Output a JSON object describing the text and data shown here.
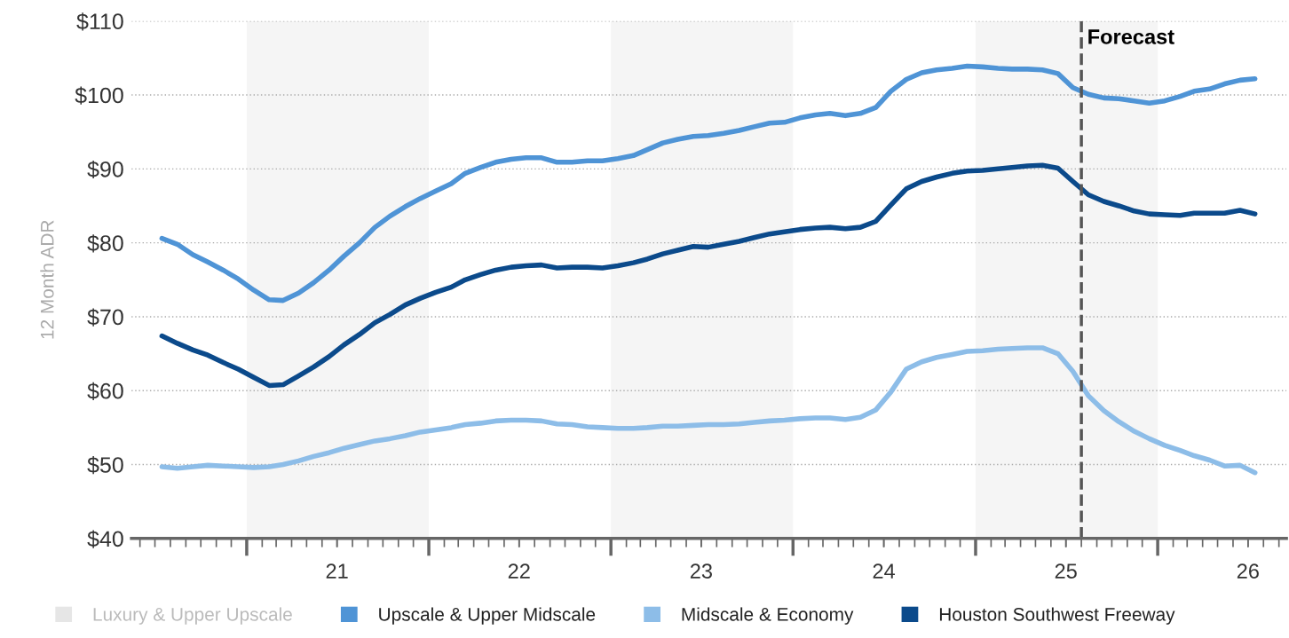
{
  "chart_data": {
    "type": "line",
    "ylabel": "12 Month ADR",
    "x": [
      "2020-07-15",
      "2020-08-15",
      "2020-09-15",
      "2020-10-15",
      "2020-11-15",
      "2020-12-15",
      "2021-01-15",
      "2021-02-15",
      "2021-03-15",
      "2021-04-15",
      "2021-05-15",
      "2021-06-15",
      "2021-07-15",
      "2021-08-15",
      "2021-09-15",
      "2021-10-15",
      "2021-11-15",
      "2021-12-15",
      "2022-01-15",
      "2022-02-15",
      "2022-03-15",
      "2022-04-15",
      "2022-05-15",
      "2022-06-15",
      "2022-07-15",
      "2022-08-15",
      "2022-09-15",
      "2022-10-15",
      "2022-11-15",
      "2022-12-15",
      "2023-01-15",
      "2023-02-15",
      "2023-03-15",
      "2023-04-15",
      "2023-05-15",
      "2023-06-15",
      "2023-07-15",
      "2023-08-15",
      "2023-09-15",
      "2023-10-15",
      "2023-11-15",
      "2023-12-15",
      "2024-01-15",
      "2024-02-15",
      "2024-03-15",
      "2024-04-15",
      "2024-05-15",
      "2024-06-15",
      "2024-07-15",
      "2024-08-15",
      "2024-09-15",
      "2024-10-15",
      "2024-11-15",
      "2024-12-15",
      "2025-01-15",
      "2025-02-15",
      "2025-03-15",
      "2025-04-15",
      "2025-05-15",
      "2025-06-15",
      "2025-07-15",
      "2025-08-15",
      "2025-09-15",
      "2025-10-15",
      "2025-11-15",
      "2025-12-15",
      "2026-01-15",
      "2026-02-15",
      "2026-03-15",
      "2026-04-15",
      "2026-05-15",
      "2026-06-15",
      "2026-07-15"
    ],
    "series": [
      {
        "name": "Luxury & Upper Upscale",
        "color": "#e6e6e6",
        "values": [
          null,
          null,
          null,
          null,
          null,
          null,
          null,
          null,
          null,
          null,
          null,
          null,
          null,
          null,
          null,
          null,
          null,
          null,
          null,
          null,
          null,
          null,
          null,
          null,
          null,
          null,
          null,
          null,
          null,
          null,
          null,
          null,
          null,
          null,
          null,
          null,
          null,
          null,
          null,
          null,
          null,
          null,
          null,
          null,
          null,
          null,
          null,
          null,
          null,
          null,
          null,
          null,
          null,
          null,
          null,
          null,
          null,
          null,
          null,
          null,
          null,
          null,
          null,
          null,
          null,
          null,
          null,
          null,
          null,
          null,
          null,
          null,
          null
        ]
      },
      {
        "name": "Upscale & Upper Midscale",
        "color": "#4f94d6",
        "values": [
          80.6,
          79.8,
          78.4,
          77.4,
          76.3,
          75.1,
          73.6,
          72.3,
          72.2,
          73.2,
          74.6,
          76.3,
          78.2,
          80.0,
          82.1,
          83.6,
          84.9,
          86.0,
          87.0,
          88.0,
          89.4,
          90.2,
          90.9,
          91.3,
          91.5,
          91.5,
          90.9,
          90.9,
          91.1,
          91.1,
          91.4,
          91.8,
          92.6,
          93.5,
          94.0,
          94.4,
          94.5,
          94.8,
          95.2,
          95.7,
          96.2,
          96.3,
          96.9,
          97.3,
          97.5,
          97.2,
          97.5,
          98.3,
          100.5,
          102.1,
          103.0,
          103.4,
          103.6,
          103.9,
          103.8,
          103.6,
          103.5,
          103.5,
          103.4,
          102.9,
          101.0,
          100.1,
          99.6,
          99.5,
          99.2,
          98.9,
          99.2,
          99.8,
          100.5,
          100.8,
          101.5,
          102.0,
          102.2
        ]
      },
      {
        "name": "Midscale & Economy",
        "color": "#8dbde8",
        "values": [
          49.7,
          49.5,
          49.7,
          49.9,
          49.8,
          49.7,
          49.6,
          49.7,
          50.0,
          50.5,
          51.1,
          51.6,
          52.2,
          52.7,
          53.2,
          53.5,
          53.9,
          54.4,
          54.7,
          55.0,
          55.4,
          55.6,
          55.9,
          56.0,
          56.0,
          55.9,
          55.5,
          55.4,
          55.1,
          55.0,
          54.9,
          54.9,
          55.0,
          55.2,
          55.2,
          55.3,
          55.4,
          55.4,
          55.5,
          55.7,
          55.9,
          56.0,
          56.2,
          56.3,
          56.3,
          56.1,
          56.4,
          57.4,
          59.8,
          62.9,
          63.9,
          64.5,
          64.9,
          65.3,
          65.4,
          65.6,
          65.7,
          65.8,
          65.8,
          65.0,
          62.6,
          59.3,
          57.3,
          55.8,
          54.5,
          53.5,
          52.6,
          51.9,
          51.2,
          50.6,
          49.8,
          49.9,
          48.9
        ]
      },
      {
        "name": "Houston Southwest Freeway",
        "color": "#0b4a8b",
        "values": [
          67.4,
          66.4,
          65.5,
          64.8,
          63.8,
          62.9,
          61.8,
          60.7,
          60.8,
          62.0,
          63.2,
          64.6,
          66.2,
          67.6,
          69.2,
          70.3,
          71.6,
          72.5,
          73.3,
          74.0,
          75.0,
          75.7,
          76.3,
          76.7,
          76.9,
          77.0,
          76.6,
          76.7,
          76.7,
          76.6,
          76.9,
          77.3,
          77.8,
          78.5,
          79.0,
          79.5,
          79.4,
          79.8,
          80.2,
          80.7,
          81.2,
          81.5,
          81.8,
          82.0,
          82.1,
          81.9,
          82.1,
          82.9,
          85.1,
          87.3,
          88.3,
          88.9,
          89.4,
          89.7,
          89.8,
          90.0,
          90.2,
          90.4,
          90.5,
          90.1,
          88.3,
          86.5,
          85.6,
          85.0,
          84.3,
          83.9,
          83.8,
          83.7,
          84.0,
          84.0,
          84.0,
          84.4,
          83.9
        ]
      }
    ],
    "xlim": [
      "2020-05-15",
      "2026-09-16"
    ],
    "xticks": [
      {
        "value": "2021-01-01",
        "label": null
      },
      {
        "value": "2021-07-01",
        "label": "21"
      },
      {
        "value": "2022-01-01",
        "label": null
      },
      {
        "value": "2022-07-01",
        "label": "22"
      },
      {
        "value": "2023-01-01",
        "label": null
      },
      {
        "value": "2023-07-01",
        "label": "23"
      },
      {
        "value": "2024-01-01",
        "label": null
      },
      {
        "value": "2024-07-01",
        "label": "24"
      },
      {
        "value": "2025-01-01",
        "label": null
      },
      {
        "value": "2025-07-01",
        "label": "25"
      },
      {
        "value": "2026-01-01",
        "label": null
      },
      {
        "value": "2026-07-01",
        "label": "26"
      }
    ],
    "ylim": [
      40,
      110
    ],
    "yticks": [
      {
        "value": 40,
        "label": "$40"
      },
      {
        "value": 50,
        "label": "$50"
      },
      {
        "value": 60,
        "label": "$60"
      },
      {
        "value": 70,
        "label": "$70"
      },
      {
        "value": 80,
        "label": "$80"
      },
      {
        "value": 90,
        "label": "$90"
      },
      {
        "value": 100,
        "label": "$100"
      },
      {
        "value": 110,
        "label": "$110"
      }
    ],
    "bands": [
      {
        "axis": "x",
        "from": "2021-01-01",
        "to": "2022-01-01",
        "color": "#f5f5f5"
      },
      {
        "axis": "x",
        "from": "2023-01-01",
        "to": "2024-01-01",
        "color": "#f5f5f5"
      },
      {
        "axis": "x",
        "from": "2025-01-01",
        "to": "2026-01-01",
        "color": "#f5f5f5"
      }
    ],
    "ref_lines": [
      {
        "axis": "x",
        "value": "2025-08-01",
        "label": "Forecast",
        "color": "#555555",
        "line_style": "dashed"
      }
    ],
    "grid": "y",
    "legend": "bottom",
    "marker": "none",
    "line_style": "solid"
  }
}
